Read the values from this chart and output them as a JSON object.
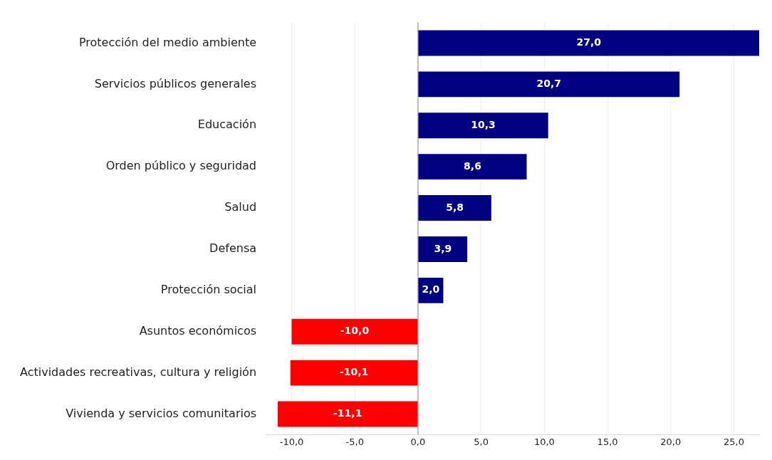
{
  "chart_data": {
    "type": "bar",
    "orientation": "horizontal",
    "categories": [
      "Protección del medio ambiente",
      "Servicios públicos generales",
      "Educación",
      "Orden público y seguridad",
      "Salud",
      "Defensa",
      "Protección social",
      "Asuntos económicos",
      "Actividades recreativas, cultura y religión",
      "Vivienda y servicios comunitarios"
    ],
    "values": [
      27.0,
      20.7,
      10.3,
      8.6,
      5.8,
      3.9,
      2.0,
      -10.0,
      -10.1,
      -11.1
    ],
    "colors": [
      "#000080",
      "#000080",
      "#000080",
      "#000080",
      "#000080",
      "#000080",
      "#000080",
      "#ff0000",
      "#ff0000",
      "#ff0000"
    ],
    "value_labels": [
      "27,0",
      "20,7",
      "10,3",
      "8,6",
      "5,8",
      "3,9",
      "2,0",
      "-10,0",
      "-10,1",
      "-11,1"
    ],
    "xlim": [
      -12,
      27
    ],
    "xticks": [
      {
        "value": -10,
        "label": "-10,0"
      },
      {
        "value": -5,
        "label": "-5,0"
      },
      {
        "value": 0,
        "label": "0,0"
      },
      {
        "value": 5,
        "label": "5,0"
      },
      {
        "value": 10,
        "label": "10,0"
      },
      {
        "value": 15,
        "label": "15,0"
      },
      {
        "value": 20,
        "label": "20,0"
      },
      {
        "value": 25,
        "label": "25,0"
      }
    ],
    "ref_lines": [
      {
        "axis": "x",
        "value": 0,
        "color": "#aaaaaa"
      }
    ],
    "grid": "x",
    "legend": false
  }
}
